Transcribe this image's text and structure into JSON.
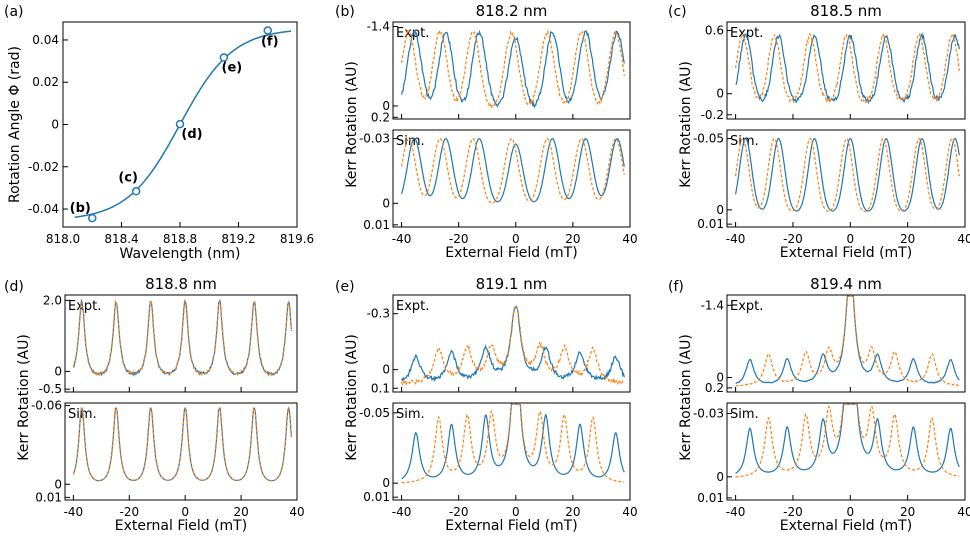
{
  "colors": {
    "blue": "#1f77b4",
    "orange": "#ff7f0e"
  },
  "chart_data": [
    {
      "id": "a",
      "type": "line",
      "panel_label": "(a)",
      "title": "",
      "xlabel": "Wavelength (nm)",
      "ylabel": "Rotation Angle Φ (rad)",
      "xlim": [
        818.0,
        819.6
      ],
      "ylim": [
        -0.0485,
        0.0485
      ],
      "xticks": [
        818.0,
        818.4,
        818.8,
        819.2,
        819.6
      ],
      "xticklabels": [
        "818.0",
        "818.4",
        "818.8",
        "819.2",
        "819.6"
      ],
      "yticks": [
        0.04,
        0.02,
        0,
        -0.02,
        -0.04
      ],
      "yticklabels": [
        "0.04",
        "0.02",
        "0",
        "-0.02",
        "-0.04"
      ],
      "curve": {
        "center": 818.8,
        "amplitude": 0.0455,
        "width": 0.36
      },
      "points": [
        {
          "x": 818.2,
          "y": -0.0443,
          "label": "(b)"
        },
        {
          "x": 818.5,
          "y": -0.0316,
          "label": "(c)"
        },
        {
          "x": 818.8,
          "y": 0.0002,
          "label": "(d)"
        },
        {
          "x": 819.1,
          "y": 0.0317,
          "label": "(e)"
        },
        {
          "x": 819.4,
          "y": 0.0445,
          "label": "(f)"
        }
      ]
    },
    {
      "id": "b",
      "type": "line",
      "panel_label": "(b)",
      "title": "818.2 nm",
      "xlabel": "External Field (mT)",
      "ylabel": "Kerr Rotation (AU)",
      "xlim": [
        -43,
        40
      ],
      "xticks": [
        -40,
        -20,
        0,
        20,
        40
      ],
      "xticklabels": [
        "-40",
        "-20",
        "0",
        "20",
        "40"
      ],
      "expt": {
        "label": "Expt.",
        "ylim": [
          0.23,
          -1.48
        ],
        "yticks": [
          -1.4,
          0,
          0.2
        ],
        "yticklabels": [
          "-1.4",
          "0",
          "0.2"
        ],
        "peak": -1.3,
        "base": 0.05,
        "shape": "gauss",
        "width": 2.4,
        "noise": 0.5
      },
      "sim": {
        "label": "Sim.",
        "ylim": [
          0.011,
          -0.034
        ],
        "yticks": [
          -0.03,
          0,
          0.01
        ],
        "yticklabels": [
          "-0.03",
          "0",
          "0.01"
        ],
        "peak": -0.03,
        "base": 0.001,
        "shape": "gauss",
        "width": 2.4,
        "noise": 0
      },
      "series": [
        {
          "name": "blue",
          "color": "#1f77b4",
          "dash": "",
          "peaks": [
            -35.5,
            -24.5,
            -12.8,
            0,
            12.8,
            24.5,
            35.5
          ],
          "amps": [
            1,
            1,
            1,
            0.92,
            1,
            1,
            1
          ]
        },
        {
          "name": "orange",
          "color": "#ff7f0e",
          "dash": "3,2",
          "peaks": [
            -37.5,
            -26.5,
            -15,
            -1.5,
            11,
            23,
            35
          ],
          "amps": [
            1,
            1,
            1,
            1,
            1,
            1,
            1
          ]
        }
      ]
    },
    {
      "id": "c",
      "type": "line",
      "panel_label": "(c)",
      "title": "818.5 nm",
      "xlabel": "External Field (mT)",
      "ylabel": "Kerr Rotation (AU)",
      "xlim": [
        -43,
        40
      ],
      "xticks": [
        -40,
        -20,
        0,
        20,
        40
      ],
      "xticklabels": [
        "-40",
        "-20",
        "0",
        "20",
        "40"
      ],
      "expt": {
        "label": "Expt.",
        "ylim": [
          -0.24,
          0.68
        ],
        "yticks": [
          0.6,
          0,
          -0.2
        ],
        "yticklabels": [
          "0.6",
          "0",
          "-0.2"
        ],
        "peak": 0.55,
        "base": -0.08,
        "shape": "gauss",
        "width": 2.1,
        "noise": 0.6
      },
      "sim": {
        "label": "Sim.",
        "ylim": [
          0.012,
          -0.056
        ],
        "yticks": [
          -0.05,
          0,
          0.01
        ],
        "yticklabels": [
          "-0.05",
          "0",
          "0.01"
        ],
        "peak": -0.05,
        "base": 0.002,
        "shape": "gauss",
        "width": 2.1,
        "noise": 0
      },
      "series": [
        {
          "name": "blue",
          "color": "#1f77b4",
          "dash": "",
          "peaks": [
            -36.5,
            -25,
            -12.5,
            0,
            12.5,
            25,
            36.5
          ],
          "amps": [
            1,
            1,
            1,
            1,
            1,
            1,
            1
          ]
        },
        {
          "name": "orange",
          "color": "#ff7f0e",
          "dash": "3,2",
          "peaks": [
            -37.5,
            -26.5,
            -14,
            -1.3,
            11.5,
            24,
            35.5
          ],
          "amps": [
            1,
            1,
            1,
            1,
            1,
            1,
            1
          ]
        }
      ]
    },
    {
      "id": "d",
      "type": "line",
      "panel_label": "(d)",
      "title": "818.8 nm",
      "xlabel": "External Field (mT)",
      "ylabel": "Kerr Rotation (AU)",
      "xlim": [
        -43,
        40
      ],
      "xticks": [
        -40,
        -20,
        0,
        20,
        40
      ],
      "xticklabels": [
        "-40",
        "-20",
        "0",
        "20",
        "40"
      ],
      "expt": {
        "label": "Expt.",
        "ylim": [
          -0.58,
          2.15
        ],
        "yticks": [
          2.0,
          0,
          -0.5
        ],
        "yticklabels": [
          "2.0",
          "0",
          "-0.5"
        ],
        "peak": 1.95,
        "base": -0.28,
        "shape": "lorentz",
        "width": 1.3,
        "noise": 0.3
      },
      "sim": {
        "label": "Sim.",
        "ylim": [
          0.012,
          -0.062
        ],
        "yticks": [
          -0.06,
          0,
          0.01
        ],
        "yticklabels": [
          "-0.06",
          "0",
          "0.01"
        ],
        "peak": -0.058,
        "base": 0.003,
        "shape": "lorentz",
        "width": 1.3,
        "noise": 0
      },
      "series": [
        {
          "name": "blue",
          "color": "#1f77b4",
          "dash": "",
          "peaks": [
            -37,
            -24.7,
            -12.3,
            0,
            12.3,
            24.7,
            37
          ],
          "amps": [
            1,
            1,
            1,
            1,
            1,
            1,
            1
          ]
        },
        {
          "name": "orange",
          "color": "#ff7f0e",
          "dash": "3,2",
          "peaks": [
            -37,
            -24.7,
            -12.3,
            0,
            12.3,
            24.7,
            37
          ],
          "amps": [
            1,
            1,
            1,
            1,
            1,
            1,
            1
          ]
        }
      ]
    },
    {
      "id": "e",
      "type": "line",
      "panel_label": "(e)",
      "title": "819.1 nm",
      "xlabel": "External Field (mT)",
      "ylabel": "Kerr Rotation (AU)",
      "xlim": [
        -43,
        40
      ],
      "xticks": [
        -40,
        -20,
        0,
        20,
        40
      ],
      "xticklabels": [
        "-40",
        "-20",
        "0",
        "20",
        "40"
      ],
      "expt": {
        "label": "Expt.",
        "ylim": [
          0.12,
          -0.4
        ],
        "yticks": [
          -0.3,
          0,
          0.1
        ],
        "yticklabels": [
          "-0.3",
          "0",
          "0.1"
        ],
        "peak": -0.12,
        "base": 0.08,
        "shape": "lorentz",
        "width": 2.0,
        "noise": 0.9
      },
      "sim": {
        "label": "Sim.",
        "ylim": [
          0.012,
          -0.057
        ],
        "yticks": [
          -0.05,
          0,
          0.01
        ],
        "yticklabels": [
          "-0.05",
          "0",
          "0.01"
        ],
        "peak": -0.05,
        "base": 0.001,
        "shape": "lorentz",
        "width": 1.6,
        "noise": 0
      },
      "series": [
        {
          "name": "blue",
          "color": "#1f77b4",
          "dash": "",
          "peaks": [
            -35,
            -22.5,
            -10.5,
            0,
            10.5,
            22.5,
            35
          ],
          "amps": [
            0.7,
            0.8,
            0.9,
            2.1,
            0.9,
            0.8,
            0.7
          ]
        },
        {
          "name": "orange",
          "color": "#ff7f0e",
          "dash": "3,2",
          "peaks": [
            -27,
            -17,
            -8.5,
            0,
            8.5,
            17,
            27
          ],
          "amps": [
            0.9,
            0.9,
            0.9,
            2.1,
            0.9,
            0.9,
            0.9
          ]
        }
      ]
    },
    {
      "id": "f",
      "type": "line",
      "panel_label": "(f)",
      "title": "819.4 nm",
      "xlabel": "External Field (mT)",
      "ylabel": "Kerr Rotation (AU)",
      "xlim": [
        -43,
        40
      ],
      "xticks": [
        -40,
        -20,
        0,
        20,
        40
      ],
      "xticklabels": [
        "-40",
        "-20",
        "0",
        "20",
        "40"
      ],
      "expt": {
        "label": "Expt.",
        "ylim": [
          0.28,
          -1.6
        ],
        "yticks": [
          -1.4,
          0,
          0.2
        ],
        "yticklabels": [
          "-1.4",
          "0",
          "0.2"
        ],
        "peak": -0.5,
        "base": 0.18,
        "shape": "lorentz",
        "width": 1.7,
        "noise": 0.2
      },
      "sim": {
        "label": "Sim.",
        "ylim": [
          0.011,
          -0.035
        ],
        "yticks": [
          -0.03,
          0,
          0.01
        ],
        "yticklabels": [
          "-0.03",
          "0",
          "0.01"
        ],
        "peak": -0.03,
        "base": 0.001,
        "shape": "lorentz",
        "width": 1.6,
        "noise": 0
      },
      "series": [
        {
          "name": "blue",
          "color": "#1f77b4",
          "dash": "",
          "peaks": [
            -35,
            -22,
            -9.5,
            0,
            9.5,
            22,
            35
          ],
          "amps": [
            0.75,
            0.75,
            0.8,
            3.5,
            0.8,
            0.75,
            0.75
          ]
        },
        {
          "name": "orange",
          "color": "#ff7f0e",
          "dash": "3,2",
          "peaks": [
            -28.5,
            -15.5,
            -7.5,
            0,
            7.5,
            15.5,
            28.5
          ],
          "amps": [
            0.9,
            0.9,
            0.9,
            3.5,
            0.9,
            0.9,
            0.9
          ]
        }
      ]
    }
  ]
}
